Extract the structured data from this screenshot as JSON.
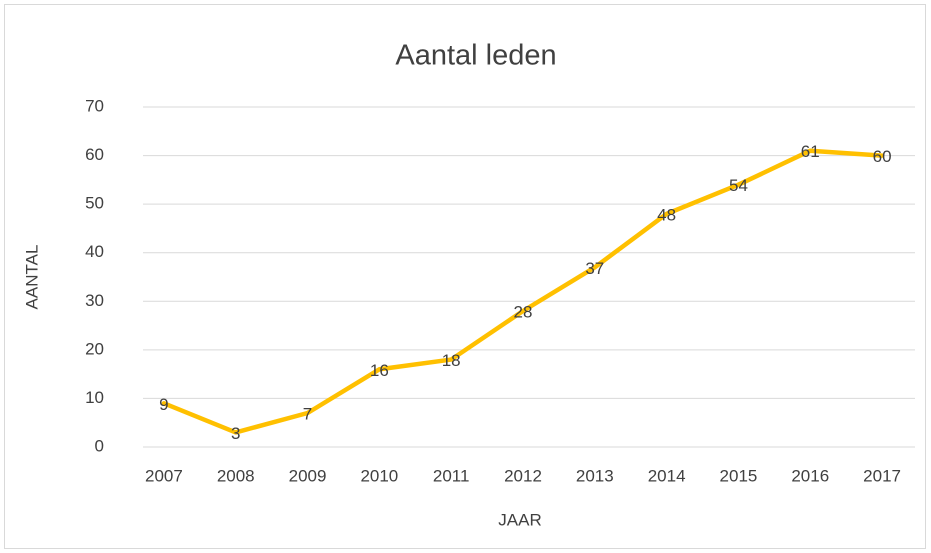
{
  "chart_data": {
    "type": "line",
    "title": "Aantal leden",
    "x_label": "JAAR",
    "y_label": "AANTAL",
    "categories": [
      "2007",
      "2008",
      "2009",
      "2010",
      "2011",
      "2012",
      "2013",
      "2014",
      "2015",
      "2016",
      "2017"
    ],
    "values": [
      9,
      3,
      7,
      16,
      18,
      28,
      37,
      48,
      54,
      61,
      60
    ],
    "color": "#ffc000",
    "ylim": [
      0,
      70
    ],
    "yticks": [
      0,
      10,
      20,
      30,
      40,
      50,
      60,
      70
    ],
    "grid": true,
    "data_labels": true
  }
}
